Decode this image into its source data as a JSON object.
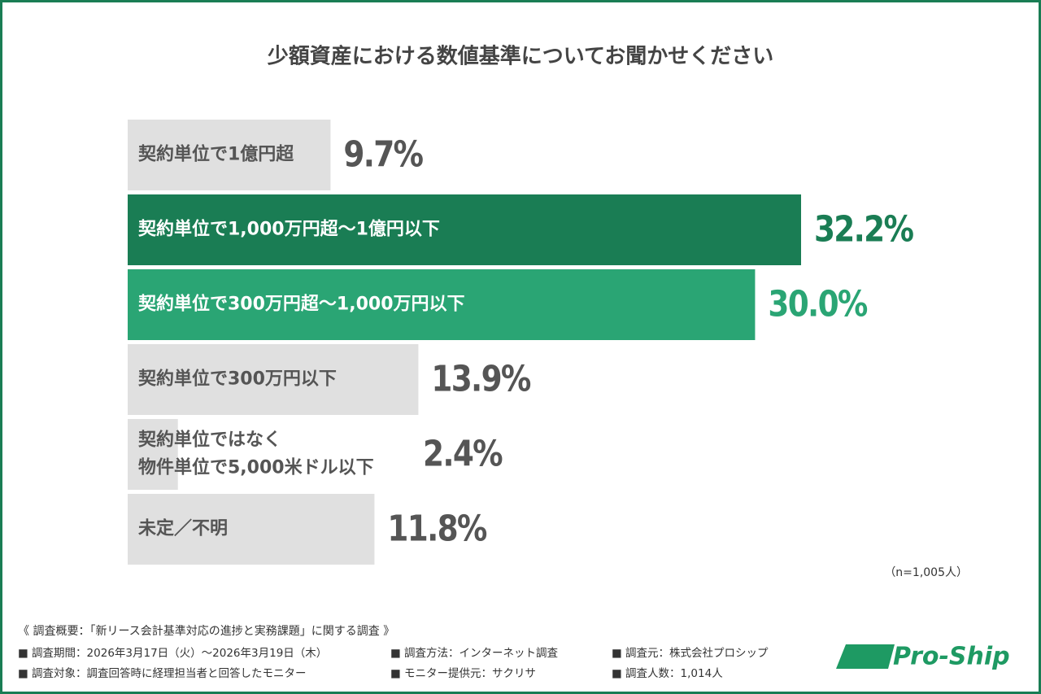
{
  "chart_data": {
    "type": "bar",
    "orientation": "horizontal",
    "title": "少額資産における数値基準についてお聞かせください",
    "categories": [
      "契約単位で1億円超",
      "契約単位で1,000万円超〜1億円以下",
      "契約単位で300万円超〜1,000万円以下",
      "契約単位で300万円以下",
      [
        "契約単位ではなく",
        "物件単位で5,000米ドル以下"
      ],
      "未定／不明"
    ],
    "values": [
      9.7,
      32.2,
      30.0,
      13.9,
      2.4,
      11.8
    ],
    "value_labels": [
      "9.7%",
      "32.2%",
      "30.0%",
      "13.9%",
      "2.4%",
      "11.8%"
    ],
    "colors": [
      "#e0e0e0",
      "#1a7d54",
      "#2aa574",
      "#e0e0e0",
      "#e0e0e0",
      "#e0e0e0"
    ],
    "note": "（n=1,005人）"
  },
  "footer": {
    "heading": "《 調査概要：「新リース会計基準対応の進捗と実務課題」に関する調査 》",
    "items": [
      [
        "■ 調査期間：2026年3月17日（火）〜2026年3月19日（木）",
        "■ 調査方法：インターネット調査",
        "■ 調査元：株式会社プロシップ"
      ],
      [
        "■ 調査対象：調査回答時に経理担当者と回答したモニター",
        "■ モニター提供元：サクリサ",
        "■ 調査人数：1,014人"
      ]
    ]
  },
  "logo": "Pro-Ship"
}
